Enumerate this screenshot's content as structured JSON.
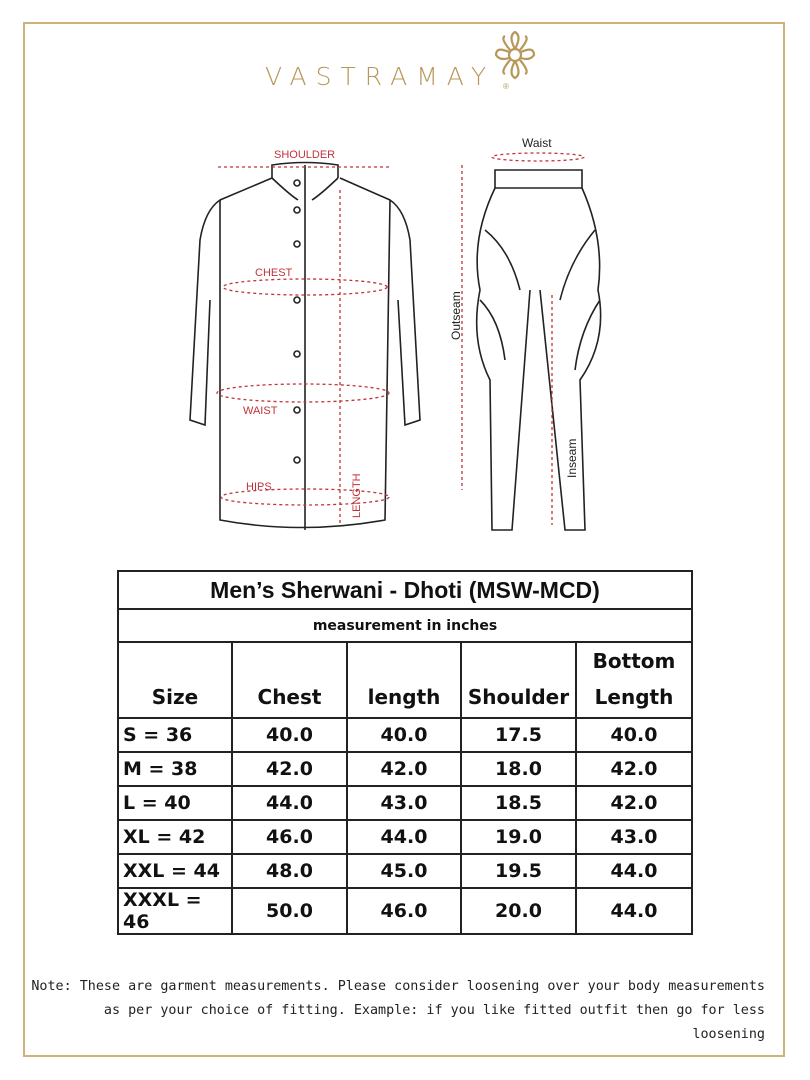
{
  "brand": {
    "name": "VASTRAMAY",
    "registered": "®",
    "color": "#b8975a"
  },
  "diagram": {
    "sherwani_labels": {
      "shoulder": "SHOULDER",
      "chest": "CHEST",
      "waist": "WAIST",
      "hips": "HIPS",
      "length": "LENGTH"
    },
    "dhoti_labels": {
      "waist": "Waist",
      "outseam": "Outseam",
      "inseam": "Inseam"
    }
  },
  "table": {
    "title": "Men’s Sherwani - Dhoti (MSW-MCD)",
    "subtitle": "measurement in inches",
    "headers": [
      "Size",
      "Chest",
      "length",
      "Shoulder",
      "Bottom Length"
    ],
    "rows": [
      [
        "S = 36",
        "40.0",
        "40.0",
        "17.5",
        "40.0"
      ],
      [
        "M = 38",
        "42.0",
        "42.0",
        "18.0",
        "42.0"
      ],
      [
        "L = 40",
        "44.0",
        "43.0",
        "18.5",
        "42.0"
      ],
      [
        "XL = 42",
        "46.0",
        "44.0",
        "19.0",
        "43.0"
      ],
      [
        "XXL = 44",
        "48.0",
        "45.0",
        "19.5",
        "44.0"
      ],
      [
        "XXXL = 46",
        "50.0",
        "46.0",
        "20.0",
        "44.0"
      ]
    ]
  },
  "note": {
    "line1": "Note: These are garment measurements. Please consider loosening over your body measurements",
    "line2": "as per your choice of fitting. Example: if you like fitted outfit then go for less loosening"
  }
}
